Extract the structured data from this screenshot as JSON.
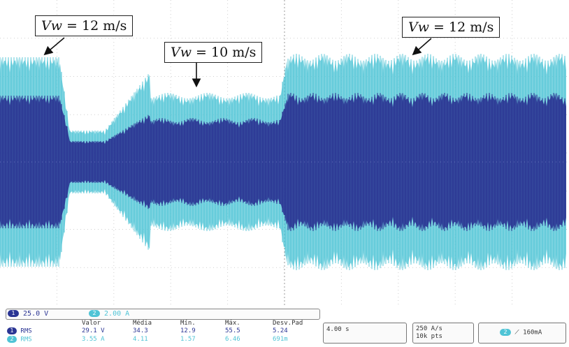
{
  "annotations": {
    "left": {
      "var": "Vw",
      "text": " = 12 m/s"
    },
    "middle": {
      "var": "Vw",
      "text": " = 10 m/s"
    },
    "right": {
      "var": "Vw",
      "text": " = 12 m/s"
    }
  },
  "channels": {
    "ch1": {
      "num": "1",
      "scale": "25.0 V",
      "color": "#2b3594"
    },
    "ch2": {
      "num": "2",
      "scale": "2.00 A",
      "color": "#4fc4d6"
    }
  },
  "measurements": {
    "headers": [
      "Valor",
      "Média",
      "Mín.",
      "Máx.",
      "Desv.Pad"
    ],
    "rows": [
      {
        "label": "RMS",
        "ch": "1",
        "values": [
          "29.1 V",
          "34.3",
          "12.9",
          "55.5",
          "5.24"
        ]
      },
      {
        "label": "RMS",
        "ch": "2",
        "values": [
          "3.55 A",
          "4.11",
          "1.57",
          "6.46",
          "691m"
        ]
      }
    ]
  },
  "timebase": "4.00 s",
  "sample_rate": "250 A/s",
  "record_length": "10k pts",
  "trigger": {
    "ch": "2",
    "level": "160mA"
  }
}
